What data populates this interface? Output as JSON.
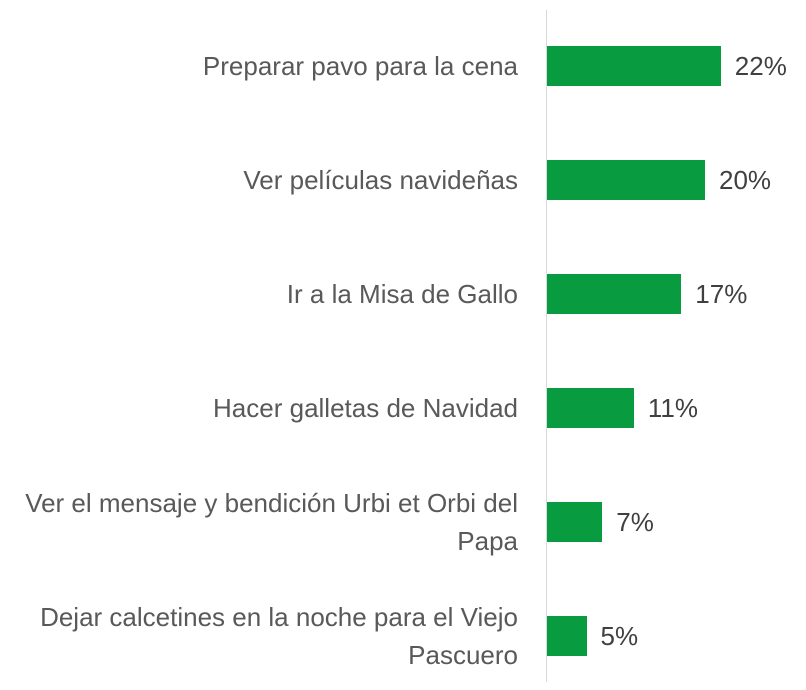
{
  "chart_data": {
    "type": "bar",
    "orientation": "horizontal",
    "color": "#089b3f",
    "categories": [
      "Preparar pavo para la cena",
      "Ver películas navideñas",
      "Ir a la Misa de Gallo",
      "Hacer galletas de Navidad",
      "Ver el mensaje y bendición Urbi et Orbi del Papa",
      "Dejar calcetines en la noche para el Viejo Pascuero"
    ],
    "values": [
      22,
      20,
      17,
      11,
      7,
      5
    ],
    "value_labels": [
      "22%",
      "20%",
      "17%",
      "11%",
      "7%",
      "5%"
    ]
  }
}
